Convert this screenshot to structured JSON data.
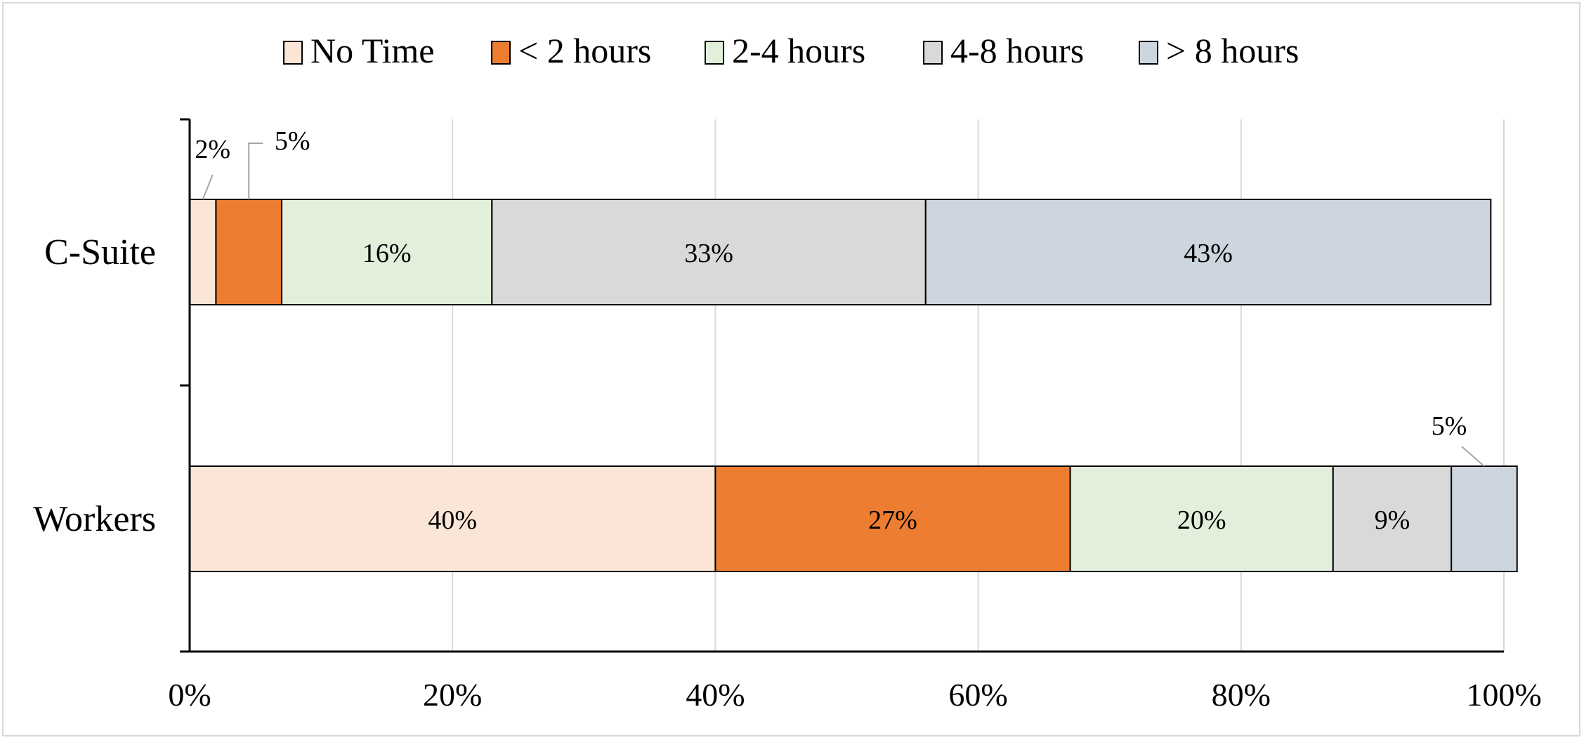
{
  "chart_data": {
    "type": "bar",
    "orientation": "horizontal",
    "stacked": true,
    "categories": [
      "C-Suite",
      "Workers"
    ],
    "series": [
      {
        "name": "No Time",
        "values": [
          2,
          40
        ],
        "color": "#fbe5d6"
      },
      {
        "name": "< 2 hours",
        "values": [
          5,
          27
        ],
        "color": "#ed7d31"
      },
      {
        "name": "2-4 hours",
        "values": [
          16,
          20
        ],
        "color": "#e2efda"
      },
      {
        "name": "4-8 hours",
        "values": [
          33,
          9
        ],
        "color": "#d9d9d9"
      },
      {
        "name": "> 8 hours",
        "values": [
          43,
          5
        ],
        "color": "#cdd5df"
      }
    ],
    "data_labels": [
      [
        "2%",
        "5%",
        "16%",
        "33%",
        "43%"
      ],
      [
        "40%",
        "27%",
        "20%",
        "9%",
        "5%"
      ]
    ],
    "xlim": [
      0,
      100
    ],
    "xticks": [
      "0%",
      "20%",
      "40%",
      "60%",
      "80%",
      "100%"
    ],
    "grid": "vertical",
    "legend_position": "top"
  }
}
